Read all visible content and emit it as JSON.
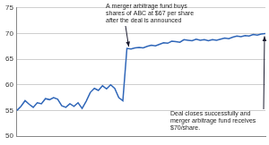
{
  "chart_data": {
    "type": "line",
    "categories": [
      null,
      null,
      null,
      null,
      null,
      null,
      null,
      null,
      null,
      null,
      null,
      null,
      null,
      null,
      null,
      null,
      null,
      null,
      null,
      null,
      null,
      null,
      null,
      null,
      null,
      null,
      null,
      null,
      null,
      null,
      null,
      null,
      null,
      null,
      null,
      null,
      null,
      null,
      null,
      null,
      null,
      null,
      null,
      null,
      null,
      null,
      null,
      null,
      null,
      null,
      null,
      null,
      null,
      null,
      null,
      null,
      null,
      null,
      null,
      null,
      null,
      null
    ],
    "values": [
      55,
      55.8,
      56.9,
      56.2,
      55.6,
      56.5,
      56.3,
      57.3,
      57.1,
      57.5,
      57.2,
      55.9,
      55.6,
      56.3,
      55.8,
      56.5,
      55.4,
      56.8,
      58.5,
      59.3,
      58.9,
      59.8,
      59.2,
      60,
      59.3,
      57.5,
      56.9,
      67.1,
      67,
      67.2,
      67.3,
      67.2,
      67.5,
      67.7,
      67.6,
      67.9,
      68.2,
      68.1,
      68.5,
      68.4,
      68.3,
      68.8,
      68.7,
      68.6,
      68.9,
      68.7,
      68.8,
      68.6,
      68.8,
      68.7,
      68.9,
      69.1,
      69,
      69.3,
      69.5,
      69.4,
      69.6,
      69.5,
      69.8,
      69.7,
      69.9,
      70
    ],
    "color": "#2f66b8",
    "ylim": [
      50,
      75
    ],
    "yticks": [
      50,
      55,
      60,
      65,
      70,
      75
    ],
    "grid": true,
    "tick_labels": "y",
    "annotations": [
      {
        "text": "A merger arbitrage fund buys shares of ABC at $67 per share after the deal is announced"
      },
      {
        "text": "Deal closes successfully and merger arbitrage fund receives $70/share."
      }
    ]
  }
}
